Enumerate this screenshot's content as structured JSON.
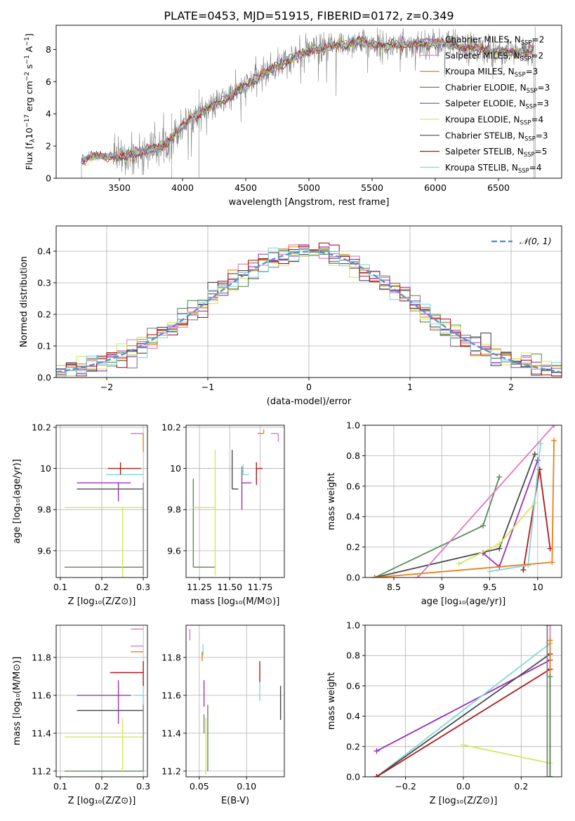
{
  "chart_data": [
    {
      "type": "line",
      "id": "spectrum",
      "title": "PLATE=0453, MJD=51915, FIBERID=0172, z=0.349",
      "xlabel": "wavelength [Angstrom, rest frame]",
      "ylabel_parts": [
        "Flux [f",
        "λ",
        "10",
        "−17",
        " erg cm",
        "−2",
        " s",
        "−1",
        " A",
        "−1",
        "]"
      ],
      "xlim": [
        3000,
        7000
      ],
      "ylim": [
        0,
        9.5
      ],
      "xticks": [
        3500,
        4000,
        4500,
        5000,
        5500,
        6000,
        6500
      ],
      "yticks": [
        0,
        2,
        4,
        6,
        8
      ],
      "grid": false,
      "legend_placement": "upper-right",
      "data_color": "#808080",
      "continuum_x": [
        3200,
        3300,
        3500,
        3700,
        3850,
        3950,
        4050,
        4200,
        4400,
        4600,
        4800,
        5000,
        5200,
        5400,
        5600,
        5800,
        6000,
        6200,
        6400,
        6600,
        6780
      ],
      "continuum_y": [
        1.1,
        1.4,
        1.3,
        1.7,
        2.0,
        2.8,
        3.7,
        4.3,
        5.2,
        6.3,
        7.2,
        7.9,
        8.2,
        8.5,
        8.2,
        8.3,
        8.4,
        8.2,
        8.0,
        7.8,
        7.9
      ],
      "series": [
        {
          "label": "Chabrier MILES, N",
          "sub": "SSP",
          "value": "=2",
          "color": "#808080"
        },
        {
          "label": "Salpeter MILES, N",
          "sub": "SSP",
          "value": "=2",
          "color": "#e377c2"
        },
        {
          "label": "Kroupa MILES, N",
          "sub": "SSP",
          "value": "=3",
          "color": "#e8801a"
        },
        {
          "label": "Chabrier ELODIE, N",
          "sub": "SSP",
          "value": "=3",
          "color": "#5a8a5a"
        },
        {
          "label": "Salpeter ELODIE, N",
          "sub": "SSP",
          "value": "=3",
          "color": "#9b30b8"
        },
        {
          "label": "Kroupa ELODIE, N",
          "sub": "SSP",
          "value": "=4",
          "color": "#d6e65a"
        },
        {
          "label": "Chabrier STELIB, N",
          "sub": "SSP",
          "value": "=3",
          "color": "#4a4a4a"
        },
        {
          "label": "Salpeter STELIB, N",
          "sub": "SSP",
          "value": "=5",
          "color": "#b01818"
        },
        {
          "label": "Kroupa STELIB, N",
          "sub": "SSP",
          "value": "=4",
          "color": "#80d8dc"
        }
      ]
    },
    {
      "type": "line",
      "id": "residuals",
      "xlabel": "(data-model)/error",
      "ylabel": "Normed distribution",
      "xlim": [
        -2.5,
        2.5
      ],
      "ylim": [
        0,
        0.48
      ],
      "xticks": [
        -2,
        -1,
        0,
        1,
        2
      ],
      "yticks": [
        0.0,
        0.1,
        0.2,
        0.3,
        0.4
      ],
      "grid": true,
      "legend_placement": "upper-right",
      "gaussian": {
        "label": "𝒩(0, 1)",
        "color": "#5b8fd6",
        "mean": 0,
        "sigma": 1
      },
      "bin_width": 0.1
    },
    {
      "type": "scatter",
      "id": "age-vs-Z",
      "xlabel": "Z [log₁₀(Z/Z⊙)]",
      "ylabel": "age  [log₁₀(age/yr)]",
      "xlim": [
        0.09,
        0.31
      ],
      "ylim": [
        9.47,
        10.21
      ],
      "xticks": [
        0.1,
        0.2,
        0.3
      ],
      "yticks": [
        9.6,
        9.8,
        10.0,
        10.2
      ],
      "grid": true,
      "points": [
        {
          "x": 0.25,
          "y": 9.52,
          "xerr": [
            0.14,
            0.05
          ],
          "yerr": [
            0,
            0
          ],
          "color": "#5a8a5a"
        },
        {
          "x": 0.25,
          "y": 9.81,
          "xerr": [
            0.14,
            0.05
          ],
          "yerr": [
            0.34,
            0
          ],
          "color": "#d6e65a"
        },
        {
          "x": 0.24,
          "y": 9.9,
          "xerr": [
            0.1,
            0.06
          ],
          "yerr": [
            0,
            0
          ],
          "color": "#4a4a4a"
        },
        {
          "x": 0.24,
          "y": 9.93,
          "xerr": [
            0.1,
            0.03
          ],
          "yerr": [
            0.09,
            0
          ],
          "color": "#9b30b8"
        },
        {
          "x": 0.25,
          "y": 9.97,
          "xerr": [
            0.04,
            0.05
          ],
          "yerr": [
            0,
            0
          ],
          "color": "#80d8dc"
        },
        {
          "x": 0.245,
          "y": 10.0,
          "xerr": [
            0.03,
            0.05
          ],
          "yerr": [
            0.03,
            0.03
          ],
          "color": "#b01818"
        },
        {
          "x": 0.3,
          "y": 10.17,
          "xerr": [
            0.03,
            0
          ],
          "yerr": [
            0.09,
            0
          ],
          "color": "#e8801a"
        },
        {
          "x": 0.3,
          "y": 10.17,
          "xerr": [
            0.03,
            0
          ],
          "yerr": [
            0,
            0
          ],
          "color": "#e377c2"
        },
        {
          "x": 0.3,
          "y": 9.93,
          "xerr": [
            0,
            0
          ],
          "yerr": [
            0.45,
            0
          ],
          "color": "#808080"
        }
      ]
    },
    {
      "type": "scatter",
      "id": "age-vs-mass",
      "xlabel": "mass [log₁₀(M/M⊙)]",
      "xlim": [
        11.14,
        11.95
      ],
      "ylim": [
        9.47,
        10.21
      ],
      "xticks": [
        11.25,
        11.5,
        11.75
      ],
      "xtick_labels": [
        "11.25",
        "11.50",
        "11.75"
      ],
      "yticks": [
        9.6,
        9.8,
        10.0,
        10.2
      ],
      "grid": true,
      "points": [
        {
          "x": 11.2,
          "y": 9.52,
          "xerr": [
            0,
            0.18
          ],
          "yerr": [
            0,
            0.43
          ],
          "color": "#5a8a5a"
        },
        {
          "x": 11.38,
          "y": 9.81,
          "xerr": [
            0.18,
            0
          ],
          "yerr": [
            0.33,
            0.28
          ],
          "color": "#d6e65a"
        },
        {
          "x": 11.52,
          "y": 9.9,
          "xerr": [
            0,
            0.05
          ],
          "yerr": [
            0,
            0.19
          ],
          "color": "#4a4a4a"
        },
        {
          "x": 11.6,
          "y": 9.93,
          "xerr": [
            0,
            0.08
          ],
          "yerr": [
            0.13,
            0.06
          ],
          "color": "#9b30b8"
        },
        {
          "x": 11.61,
          "y": 9.97,
          "xerr": [
            0,
            0.05
          ],
          "yerr": [
            0,
            0.05
          ],
          "color": "#80d8dc"
        },
        {
          "x": 11.72,
          "y": 10.0,
          "xerr": [
            0,
            0.05
          ],
          "yerr": [
            0.08,
            0.03
          ],
          "color": "#b01818"
        },
        {
          "x": 11.78,
          "y": 10.17,
          "xerr": [
            0.05,
            0
          ],
          "yerr": [
            0,
            0.02
          ],
          "color": "#e8801a"
        },
        {
          "x": 11.9,
          "y": 10.17,
          "xerr": [
            0.06,
            0
          ],
          "yerr": [
            0.04,
            0
          ],
          "color": "#e377c2"
        },
        {
          "x": 11.6,
          "y": 9.93,
          "xerr": [
            0,
            0
          ],
          "yerr": [
            0,
            0.08
          ],
          "color": "#808080"
        }
      ]
    },
    {
      "type": "line",
      "id": "mass-weight-vs-age",
      "xlabel": "age  [log₁₀(age/yr)]",
      "ylabel": "mass weight",
      "xlim": [
        8.2,
        10.25
      ],
      "ylim": [
        0,
        1.0
      ],
      "xticks": [
        8.5,
        9.0,
        9.5,
        10.0
      ],
      "yticks": [
        0.0,
        0.2,
        0.4,
        0.6,
        0.8,
        1.0
      ],
      "grid": true,
      "series": [
        {
          "color": "#5a8a5a",
          "x": [
            8.3,
            9.43,
            9.6
          ],
          "y": [
            0.0,
            0.34,
            0.66
          ]
        },
        {
          "color": "#4a4a4a",
          "x": [
            8.3,
            9.6,
            9.97
          ],
          "y": [
            0.0,
            0.19,
            0.81
          ]
        },
        {
          "color": "#9b30b8",
          "x": [
            9.43,
            9.6,
            10.0
          ],
          "y": [
            0.16,
            0.07,
            0.77
          ]
        },
        {
          "color": "#b01818",
          "x": [
            9.85,
            10.02,
            10.13
          ],
          "y": [
            0.05,
            0.71,
            0.19
          ]
        },
        {
          "color": "#d6e65a",
          "x": [
            9.18,
            9.6,
            9.97
          ],
          "y": [
            0.09,
            0.22,
            0.49
          ]
        },
        {
          "color": "#80d8dc",
          "x": [
            9.5,
            9.9,
            10.03
          ],
          "y": [
            0.04,
            0.08,
            0.88
          ]
        },
        {
          "color": "#e377c2",
          "x": [
            8.75,
            10.17
          ],
          "y": [
            0.0,
            1.0
          ]
        },
        {
          "color": "#e8801a",
          "x": [
            8.3,
            10.15,
            10.17
          ],
          "y": [
            0.0,
            0.1,
            0.9
          ]
        }
      ]
    },
    {
      "type": "scatter",
      "id": "mass-vs-Z",
      "xlabel": "Z [log₁₀(Z/Z⊙)]",
      "ylabel": "mass [log₁₀(M/M⊙)]",
      "xlim": [
        0.09,
        0.31
      ],
      "ylim": [
        11.17,
        11.97
      ],
      "xticks": [
        0.1,
        0.2,
        0.3
      ],
      "yticks": [
        11.2,
        11.4,
        11.6,
        11.8
      ],
      "grid": true,
      "points": [
        {
          "x": 0.25,
          "y": 11.2,
          "xerr": [
            0.14,
            0.05
          ],
          "yerr": [
            0,
            0
          ],
          "color": "#5a8a5a"
        },
        {
          "x": 0.25,
          "y": 11.38,
          "xerr": [
            0.14,
            0.05
          ],
          "yerr": [
            0.18,
            0.1
          ],
          "color": "#d6e65a"
        },
        {
          "x": 0.24,
          "y": 11.52,
          "xerr": [
            0.1,
            0.06
          ],
          "yerr": [
            0,
            0
          ],
          "color": "#4a4a4a"
        },
        {
          "x": 0.24,
          "y": 11.6,
          "xerr": [
            0.1,
            0.03
          ],
          "yerr": [
            0.15,
            0.08
          ],
          "color": "#9b30b8"
        },
        {
          "x": 0.3,
          "y": 11.6,
          "xerr": [
            0.02,
            0
          ],
          "yerr": [
            0.06,
            0.06
          ],
          "color": "#80d8dc"
        },
        {
          "x": 0.3,
          "y": 11.72,
          "xerr": [
            0.08,
            0
          ],
          "yerr": [
            0.07,
            0.06
          ],
          "color": "#b01818"
        },
        {
          "x": 0.3,
          "y": 11.83,
          "xerr": [
            0.03,
            0
          ],
          "yerr": [
            0,
            0
          ],
          "color": "#e8801a"
        },
        {
          "x": 0.3,
          "y": 11.86,
          "xerr": [
            0.03,
            0
          ],
          "yerr": [
            0,
            0
          ],
          "color": "#e377c2"
        },
        {
          "x": 0.3,
          "y": 11.95,
          "xerr": [
            0.03,
            0
          ],
          "yerr": [
            0,
            0
          ],
          "color": "#e377c2"
        },
        {
          "x": 0.3,
          "y": 11.55,
          "xerr": [
            0,
            0
          ],
          "yerr": [
            0.35,
            0
          ],
          "color": "#808080"
        }
      ]
    },
    {
      "type": "scatter",
      "id": "mass-vs-ebv",
      "xlabel": "E(B-V)",
      "xlim": [
        0.036,
        0.14
      ],
      "ylim": [
        11.17,
        11.97
      ],
      "xticks": [
        0.05,
        0.1
      ],
      "xtick_labels": [
        "0.05",
        "0.10"
      ],
      "yticks": [
        11.2,
        11.4,
        11.6,
        11.8
      ],
      "grid": true,
      "points": [
        {
          "x": 0.059,
          "y": 11.2,
          "xerr": [
            0,
            0
          ],
          "yerr": [
            0,
            0.35
          ],
          "color": "#5a8a5a"
        },
        {
          "x": 0.057,
          "y": 11.38,
          "xerr": [
            0,
            0
          ],
          "yerr": [
            0.2,
            0.1
          ],
          "color": "#d6e65a"
        },
        {
          "x": 0.136,
          "y": 11.56,
          "xerr": [
            0,
            0
          ],
          "yerr": [
            0.09,
            0.09
          ],
          "color": "#4a4a4a"
        },
        {
          "x": 0.055,
          "y": 11.6,
          "xerr": [
            0,
            0
          ],
          "yerr": [
            0.06,
            0.08
          ],
          "color": "#9b30b8"
        },
        {
          "x": 0.114,
          "y": 11.62,
          "xerr": [
            0,
            0
          ],
          "yerr": [
            0.05,
            0.05
          ],
          "color": "#80d8dc"
        },
        {
          "x": 0.114,
          "y": 11.72,
          "xerr": [
            0,
            0
          ],
          "yerr": [
            0.05,
            0.06
          ],
          "color": "#b01818"
        },
        {
          "x": 0.053,
          "y": 11.8,
          "xerr": [
            0,
            0
          ],
          "yerr": [
            0.02,
            0.03
          ],
          "color": "#e8801a"
        },
        {
          "x": 0.054,
          "y": 11.84,
          "xerr": [
            0,
            0
          ],
          "yerr": [
            0.03,
            0.03
          ],
          "color": "#80d8dc"
        },
        {
          "x": 0.04,
          "y": 11.92,
          "xerr": [
            0,
            0
          ],
          "yerr": [
            0.03,
            0.03
          ],
          "color": "#e377c2"
        },
        {
          "x": 0.055,
          "y": 11.4,
          "xerr": [
            0,
            0
          ],
          "yerr": [
            0,
            0.1
          ],
          "color": "#808080"
        }
      ]
    },
    {
      "type": "line",
      "id": "mass-weight-vs-Z",
      "xlabel": "Z [log₁₀(Z/Z⊙)]",
      "ylabel": "mass weight",
      "xlim": [
        -0.34,
        0.34
      ],
      "ylim": [
        0,
        1.0
      ],
      "xticks": [
        -0.2,
        0.0,
        0.2
      ],
      "xtick_labels": [
        "−0.2",
        "0.0",
        "0.2"
      ],
      "yticks": [
        0.0,
        0.2,
        0.4,
        0.6,
        0.8,
        1.0
      ],
      "grid": true,
      "series": [
        {
          "color": "#9b30b8",
          "x": [
            -0.3,
            0.3
          ],
          "y": [
            0.17,
            0.77
          ]
        },
        {
          "color": "#80d8dc",
          "x": [
            -0.3,
            0.3
          ],
          "y": [
            0.0,
            0.88
          ]
        },
        {
          "color": "#4a4a4a",
          "x": [
            -0.3,
            0.3
          ],
          "y": [
            0.0,
            0.81
          ]
        },
        {
          "color": "#b01818",
          "x": [
            -0.3,
            0.3
          ],
          "y": [
            0.0,
            0.71
          ]
        },
        {
          "color": "#d6e65a",
          "x": [
            0.0,
            0.3
          ],
          "y": [
            0.21,
            0.09
          ]
        },
        {
          "color": "#e377c2",
          "x": [
            0.3,
            0.3
          ],
          "y": [
            0.0,
            1.0
          ]
        },
        {
          "color": "#e8801a",
          "x": [
            0.3,
            0.3
          ],
          "y": [
            0.0,
            0.9
          ]
        },
        {
          "color": "#5a8a5a",
          "x": [
            0.3,
            0.3
          ],
          "y": [
            0.0,
            0.66
          ]
        },
        {
          "color": "#808080",
          "x": [
            0.29,
            0.29
          ],
          "y": [
            0.0,
            1.0
          ]
        }
      ]
    }
  ]
}
